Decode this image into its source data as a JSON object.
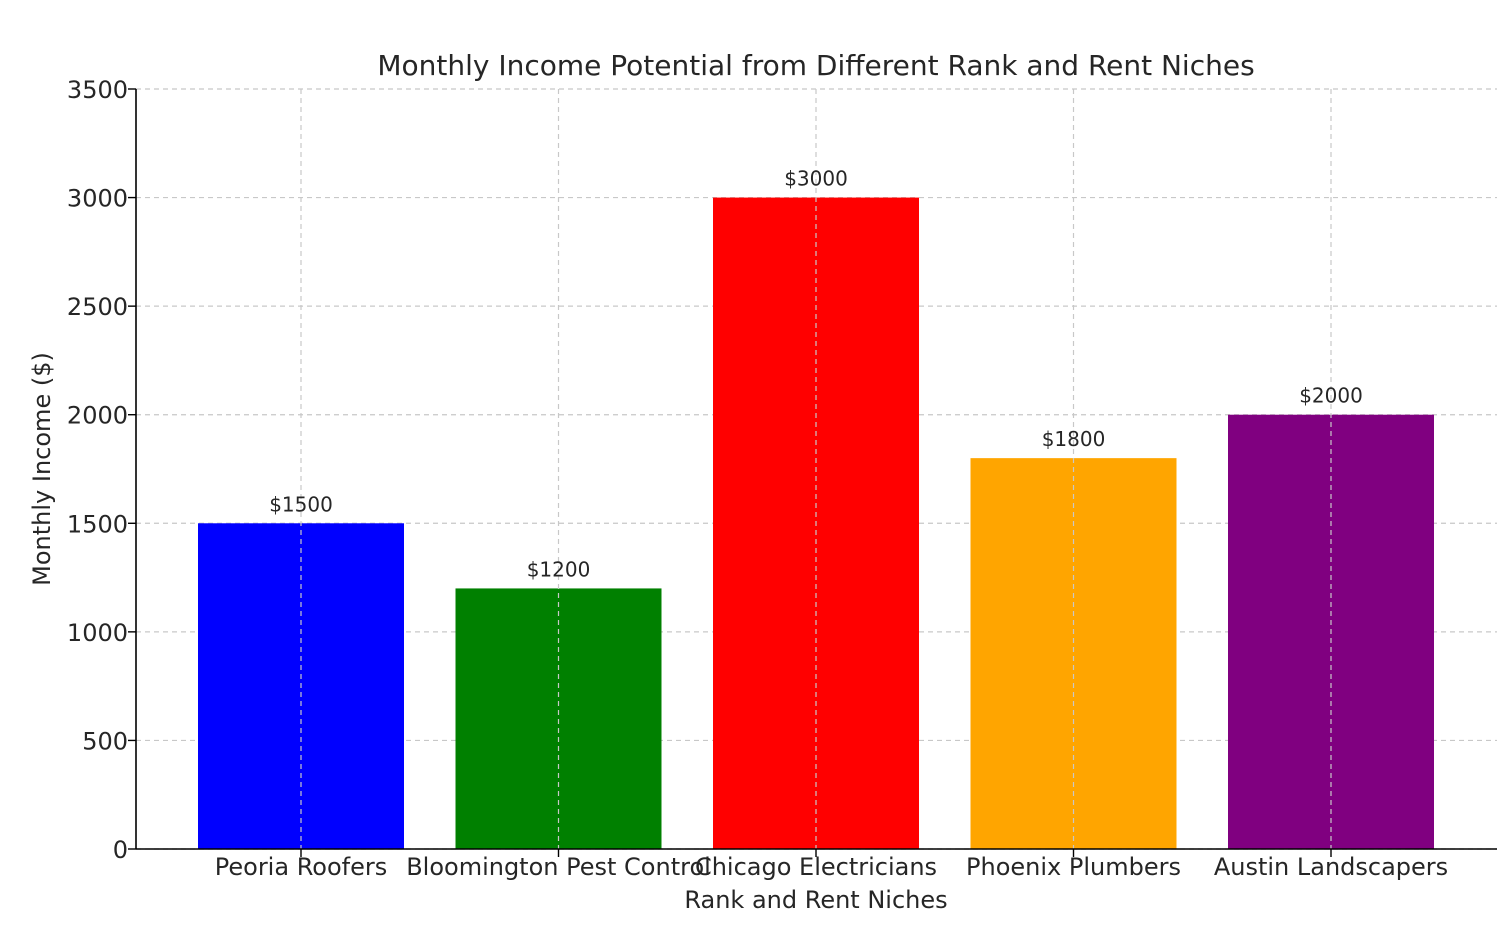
{
  "chart_data": {
    "type": "bar",
    "title": "Monthly Income Potential from Different Rank and Rent Niches",
    "xlabel": "Rank and Rent Niches",
    "ylabel": "Monthly Income ($)",
    "categories": [
      "Peoria Roofers",
      "Bloomington Pest Control",
      "Chicago Electricians",
      "Phoenix Plumbers",
      "Austin Landscapers"
    ],
    "values": [
      1500,
      1200,
      3000,
      1800,
      2000
    ],
    "data_labels": [
      "$1500",
      "$1200",
      "$3000",
      "$1800",
      "$2000"
    ],
    "colors": [
      "#0000ff",
      "#008000",
      "#ff0000",
      "#ffa500",
      "#800080"
    ],
    "ylim": [
      0,
      3500
    ],
    "yticks": [
      0,
      500,
      1000,
      1500,
      2000,
      2500,
      3000,
      3500
    ],
    "grid": true,
    "legend": "none"
  }
}
